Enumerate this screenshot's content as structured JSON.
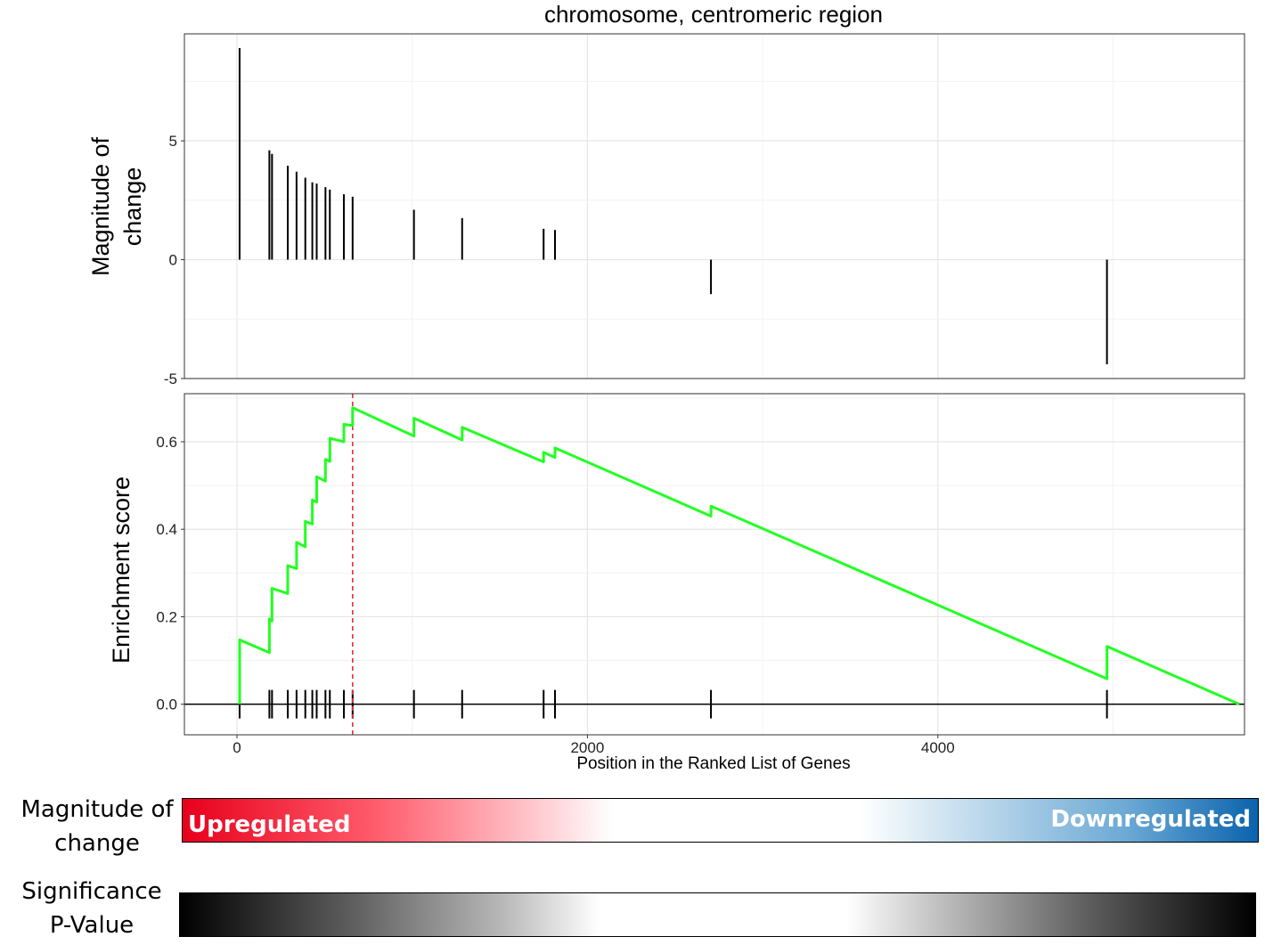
{
  "title": "chromosome, centromeric region",
  "chart_data": [
    {
      "type": "bar",
      "panel": "magnitude",
      "ylabel_lines": [
        "Magnitude of",
        "change"
      ],
      "xlim": [
        -300,
        5750
      ],
      "ylim": [
        -5,
        9.5
      ],
      "yticks": [
        -5,
        0,
        5
      ],
      "ytick_labels": [
        "-5",
        "0",
        "5"
      ],
      "grid": true,
      "x": [
        15,
        185,
        200,
        290,
        340,
        390,
        430,
        455,
        505,
        530,
        610,
        660,
        1010,
        1285,
        1750,
        1815,
        2705,
        4965
      ],
      "values": [
        8.9,
        4.6,
        4.45,
        3.95,
        3.7,
        3.45,
        3.25,
        3.2,
        3.05,
        2.95,
        2.75,
        2.65,
        2.1,
        1.75,
        1.3,
        1.25,
        -1.45,
        -4.4
      ]
    },
    {
      "type": "line",
      "panel": "enrichment",
      "ylabel": "Enrichment score",
      "xlabel": "Position in the Ranked List of Genes",
      "xlim": [
        -300,
        5750
      ],
      "ylim": [
        -0.07,
        0.71
      ],
      "xticks": [
        0,
        2000,
        4000
      ],
      "xtick_labels": [
        "0",
        "2000",
        "4000"
      ],
      "yticks": [
        0.0,
        0.2,
        0.4,
        0.6
      ],
      "ytick_labels": [
        "0.0",
        "0.2",
        "0.4",
        "0.6"
      ],
      "grid": true,
      "line_color": "#22ff22",
      "peak_line_color": "#e0303a",
      "peak_x": 660,
      "x": [
        15,
        15,
        185,
        185,
        200,
        200,
        290,
        290,
        340,
        340,
        390,
        390,
        430,
        430,
        455,
        455,
        505,
        505,
        530,
        530,
        610,
        610,
        660,
        660,
        1010,
        1010,
        1285,
        1285,
        1750,
        1750,
        1815,
        1815,
        2705,
        2705,
        4965,
        4965,
        5720
      ],
      "y": [
        0.0,
        0.147,
        0.118,
        0.195,
        0.19,
        0.265,
        0.253,
        0.317,
        0.31,
        0.37,
        0.36,
        0.418,
        0.412,
        0.467,
        0.462,
        0.52,
        0.51,
        0.56,
        0.555,
        0.608,
        0.6,
        0.64,
        0.637,
        0.678,
        0.613,
        0.654,
        0.604,
        0.633,
        0.554,
        0.576,
        0.564,
        0.586,
        0.43,
        0.453,
        0.058,
        0.132,
        0.0
      ],
      "hit_positions": [
        15,
        185,
        200,
        290,
        340,
        390,
        430,
        455,
        505,
        530,
        610,
        660,
        1010,
        1285,
        1750,
        1815,
        2705,
        4965
      ]
    }
  ],
  "legend": {
    "magnitude_label_lines": [
      "Magnitude of",
      "change"
    ],
    "up_label": "Upregulated",
    "down_label": "Downregulated",
    "significance_label_lines": [
      "Significance",
      "P-Value"
    ]
  }
}
